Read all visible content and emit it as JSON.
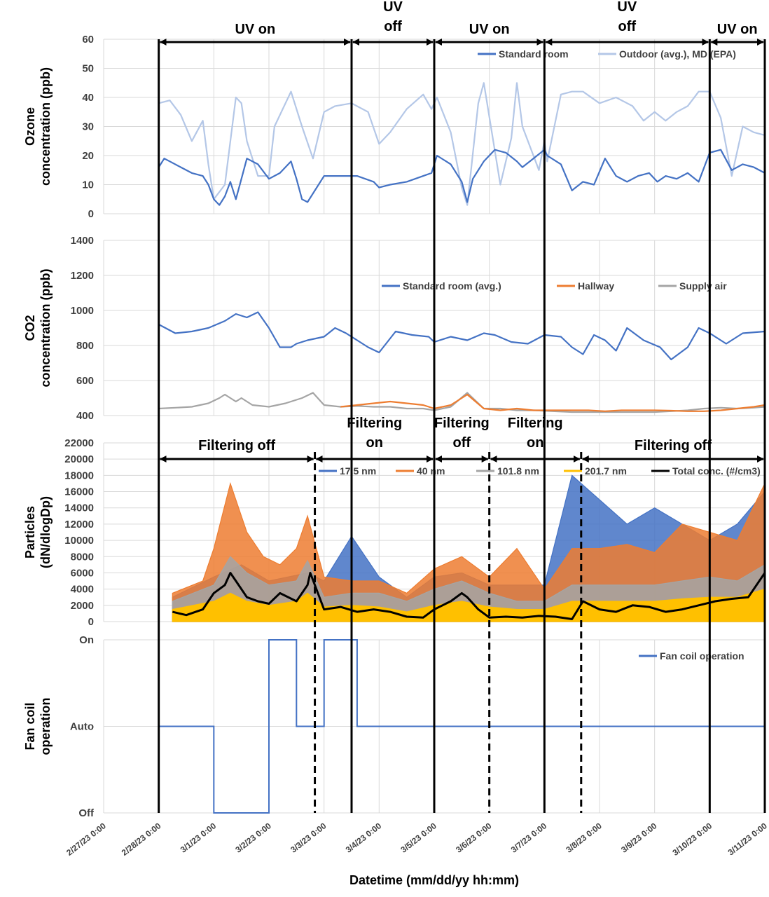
{
  "figure": {
    "xlabel": "Datetime (mm/dd/yy hh:mm)",
    "xticks": [
      "2/27/23 0:00",
      "2/28/23 0:00",
      "3/1/23 0:00",
      "3/2/23 0:00",
      "3/3/23 0:00",
      "3/4/23 0:00",
      "3/5/23 0:00",
      "3/6/23 0:00",
      "3/7/23 0:00",
      "3/8/23 0:00",
      "3/9/23 0:00",
      "3/10/23 0:00",
      "3/11/23 0:00"
    ],
    "uv_periods": [
      {
        "label": [
          "UV on"
        ],
        "start": "2/28/23 0:00",
        "end": "3/3/23 12:00"
      },
      {
        "label": [
          "UV",
          "off"
        ],
        "start": "3/3/23 12:00",
        "end": "3/5/23 0:00"
      },
      {
        "label": [
          "UV on"
        ],
        "start": "3/5/23 0:00",
        "end": "3/7/23 0:00"
      },
      {
        "label": [
          "UV",
          "off"
        ],
        "start": "3/7/23 0:00",
        "end": "3/10/23 0:00"
      },
      {
        "label": [
          "UV on"
        ],
        "start": "3/10/23 0:00",
        "end": "3/11/23 0:00"
      }
    ],
    "filter_periods": [
      {
        "label": [
          "Filtering off"
        ],
        "start": "2/28/23 0:00",
        "end": "3/2/23 20:00"
      },
      {
        "label": [
          "Filtering",
          "on"
        ],
        "start": "3/2/23 20:00",
        "end": "3/5/23 0:00"
      },
      {
        "label": [
          "Filtering",
          "off"
        ],
        "start": "3/5/23 0:00",
        "end": "3/6/23 0:00"
      },
      {
        "label": [
          "Filtering",
          "on"
        ],
        "start": "3/6/23 0:00",
        "end": "3/7/23 16:00"
      },
      {
        "label": [
          "Filtering off"
        ],
        "start": "3/7/23 16:00",
        "end": "3/11/23 0:00"
      }
    ]
  },
  "chart_data": [
    {
      "type": "line",
      "ylabel": [
        "Ozone",
        "concentration (ppb)"
      ],
      "ylim": [
        0,
        60
      ],
      "yticks": [
        "0",
        "10",
        "20",
        "30",
        "40",
        "50",
        "60"
      ],
      "grid": true,
      "legend_position": "top-right",
      "series": [
        {
          "name": "Standard room",
          "color": "#4472c4",
          "x_days": [
            0,
            0.1,
            0.2,
            0.4,
            0.6,
            0.8,
            0.9,
            1.0,
            1.1,
            1.2,
            1.3,
            1.4,
            1.5,
            1.6,
            1.8,
            2.0,
            2.2,
            2.4,
            2.5,
            2.6,
            2.7,
            3.0,
            3.3,
            3.6,
            3.9,
            4.0,
            4.2,
            4.5,
            4.8,
            4.95,
            5.05,
            5.3,
            5.5,
            5.6,
            5.7,
            5.9,
            6.1,
            6.3,
            6.5,
            6.6,
            6.8,
            7.0,
            7.05,
            7.3,
            7.5,
            7.7,
            7.9,
            8.1,
            8.3,
            8.5,
            8.7,
            8.9,
            9.05,
            9.2,
            9.4,
            9.6,
            9.8,
            10.0,
            10.2,
            10.4,
            10.6,
            10.8,
            11.0
          ],
          "values": [
            16,
            19,
            18,
            16,
            14,
            13,
            10,
            5,
            3,
            6,
            11,
            5,
            12,
            19,
            17,
            12,
            14,
            18,
            12,
            5,
            4,
            13,
            13,
            13,
            11,
            9,
            10,
            11,
            13,
            14,
            20,
            17,
            11,
            4,
            12,
            18,
            22,
            21,
            18,
            16,
            19,
            22,
            20,
            17,
            8,
            11,
            10,
            19,
            13,
            11,
            13,
            14,
            11,
            13,
            12,
            14,
            11,
            21,
            22,
            15,
            17,
            16,
            14
          ]
        },
        {
          "name": "Outdoor (avg.), MD (EPA)",
          "color": "#b4c7e7",
          "x_days": [
            0,
            0.2,
            0.4,
            0.6,
            0.8,
            0.9,
            1.0,
            1.2,
            1.4,
            1.5,
            1.6,
            1.8,
            2.0,
            2.1,
            2.4,
            2.6,
            2.8,
            3.0,
            3.2,
            3.5,
            3.8,
            4.0,
            4.2,
            4.5,
            4.8,
            4.95,
            5.05,
            5.3,
            5.5,
            5.6,
            5.8,
            5.9,
            6.2,
            6.4,
            6.5,
            6.6,
            6.9,
            7.0,
            7.05,
            7.3,
            7.5,
            7.7,
            8.0,
            8.3,
            8.6,
            8.8,
            9.0,
            9.2,
            9.4,
            9.6,
            9.8,
            10.0,
            10.2,
            10.4,
            10.6,
            10.8,
            11.0
          ],
          "values": [
            38,
            39,
            34,
            25,
            32,
            17,
            5,
            10,
            40,
            38,
            25,
            13,
            13,
            30,
            42,
            30,
            19,
            35,
            37,
            38,
            35,
            24,
            28,
            36,
            41,
            36,
            40,
            28,
            9,
            3,
            38,
            45,
            10,
            26,
            45,
            30,
            15,
            25,
            18,
            41,
            42,
            42,
            38,
            40,
            37,
            32,
            35,
            32,
            35,
            37,
            42,
            42,
            33,
            13,
            30,
            28,
            27
          ]
        }
      ]
    },
    {
      "type": "line",
      "ylabel": [
        "CO2",
        "concentration (ppb)"
      ],
      "ylim": [
        400,
        1400
      ],
      "yticks": [
        "400",
        "600",
        "800",
        "1000",
        "1200",
        "1400"
      ],
      "grid": true,
      "legend_position": "middle",
      "series": [
        {
          "name": "Standard room (avg.)",
          "color": "#4472c4",
          "x_days": [
            0,
            0.3,
            0.6,
            0.9,
            1.2,
            1.4,
            1.6,
            1.8,
            2.0,
            2.2,
            2.4,
            2.5,
            2.7,
            3.0,
            3.2,
            3.4,
            3.6,
            3.8,
            4.0,
            4.3,
            4.6,
            4.9,
            5.0,
            5.3,
            5.6,
            5.9,
            6.1,
            6.4,
            6.7,
            7.0,
            7.3,
            7.5,
            7.7,
            7.9,
            8.1,
            8.3,
            8.5,
            8.8,
            9.1,
            9.3,
            9.6,
            9.8,
            10.0,
            10.3,
            10.6,
            11.0
          ],
          "values": [
            920,
            870,
            880,
            900,
            940,
            980,
            960,
            990,
            900,
            790,
            790,
            810,
            830,
            850,
            900,
            870,
            830,
            790,
            760,
            880,
            860,
            850,
            820,
            850,
            830,
            870,
            860,
            820,
            810,
            860,
            850,
            790,
            750,
            860,
            830,
            770,
            900,
            830,
            790,
            720,
            790,
            900,
            870,
            810,
            870,
            880
          ]
        },
        {
          "name": "Hallway",
          "color": "#ed7d31",
          "x_days": [
            3.3,
            3.6,
            3.9,
            4.2,
            4.5,
            4.8,
            5.0,
            5.3,
            5.6,
            5.9,
            6.2,
            6.5,
            6.8,
            7.5,
            7.8,
            8.1,
            8.4,
            8.7,
            9.0,
            9.3,
            9.6,
            9.9,
            10.2,
            10.5,
            10.8,
            11.0
          ],
          "values": [
            450,
            460,
            470,
            480,
            470,
            460,
            440,
            460,
            520,
            440,
            430,
            440,
            430,
            430,
            430,
            425,
            430,
            430,
            430,
            428,
            425,
            425,
            430,
            440,
            450,
            460
          ]
        },
        {
          "name": "Supply air",
          "color": "#a5a5a5",
          "x_days": [
            0,
            0.3,
            0.6,
            0.9,
            1.1,
            1.2,
            1.4,
            1.5,
            1.7,
            2.0,
            2.3,
            2.6,
            2.8,
            3.0,
            3.3,
            3.6,
            3.9,
            4.2,
            4.5,
            4.8,
            5.0,
            5.3,
            5.6,
            5.9,
            6.2,
            6.5,
            6.8,
            7.5,
            7.8,
            8.1,
            8.4,
            8.7,
            9.0,
            9.3,
            9.6,
            9.9,
            10.2,
            10.5,
            10.8,
            11.0
          ],
          "values": [
            440,
            445,
            450,
            470,
            500,
            520,
            480,
            500,
            460,
            450,
            470,
            500,
            530,
            460,
            450,
            455,
            450,
            450,
            440,
            440,
            430,
            450,
            530,
            440,
            440,
            430,
            430,
            420,
            420,
            420,
            420,
            420,
            420,
            425,
            430,
            440,
            445,
            440,
            445,
            450
          ]
        }
      ]
    },
    {
      "type": "area",
      "ylabel": [
        "Particles",
        "(dN/dlogDp)"
      ],
      "ylim": [
        0,
        22000
      ],
      "yticks": [
        "0",
        "2000",
        "4000",
        "6000",
        "8000",
        "10000",
        "12000",
        "14000",
        "16000",
        "18000",
        "20000",
        "22000"
      ],
      "grid": true,
      "legend_position": "top",
      "series": [
        {
          "name": "17.5 nm",
          "color": "#4472c4",
          "x_days": [
            0.25,
            1.0,
            1.5,
            2.0,
            2.7,
            3.0,
            3.5,
            4.0,
            4.5,
            5.0,
            5.5,
            6.0,
            6.5,
            7.0,
            7.5,
            8.0,
            8.5,
            9.0,
            9.5,
            10.0,
            10.5,
            11.0
          ],
          "values": [
            3000,
            5500,
            7000,
            5000,
            6000,
            5000,
            10500,
            5500,
            3000,
            5500,
            6000,
            4500,
            4500,
            4500,
            18000,
            15000,
            12000,
            14000,
            12000,
            10000,
            12000,
            16000
          ]
        },
        {
          "name": "40 nm",
          "color": "#ed7d31",
          "x_days": [
            0.25,
            0.8,
            1.0,
            1.3,
            1.6,
            1.9,
            2.2,
            2.5,
            2.7,
            3.0,
            3.5,
            4.0,
            4.5,
            5.0,
            5.5,
            6.0,
            6.5,
            7.0,
            7.5,
            8.0,
            8.5,
            9.0,
            9.5,
            10.0,
            10.5,
            11.0
          ],
          "values": [
            3500,
            5000,
            9000,
            17000,
            11000,
            8000,
            7000,
            9000,
            13000,
            5500,
            5000,
            5000,
            3500,
            6500,
            8000,
            5500,
            9000,
            4000,
            9000,
            9000,
            9500,
            8500,
            12000,
            11000,
            10000,
            17000
          ]
        },
        {
          "name": "101.8 nm",
          "color": "#a5a5a5",
          "x_days": [
            0.25,
            1.0,
            1.3,
            1.6,
            2.0,
            2.5,
            2.7,
            3.0,
            3.5,
            4.0,
            4.5,
            5.0,
            5.5,
            6.0,
            6.5,
            7.0,
            7.5,
            8.0,
            8.5,
            9.0,
            9.5,
            10.0,
            10.5,
            11.0
          ],
          "values": [
            2500,
            4500,
            8000,
            6000,
            4500,
            5000,
            7500,
            3000,
            3500,
            3500,
            2500,
            4000,
            5000,
            3500,
            2500,
            2500,
            4500,
            4500,
            4500,
            4500,
            5000,
            5500,
            5000,
            7000
          ]
        },
        {
          "name": "201.7 nm",
          "color": "#ffc000",
          "x_days": [
            0.25,
            1.0,
            1.3,
            1.6,
            2.0,
            2.5,
            2.7,
            3.0,
            3.5,
            4.0,
            4.5,
            5.0,
            5.5,
            6.0,
            6.5,
            7.0,
            7.5,
            8.0,
            8.5,
            9.0,
            9.5,
            10.0,
            10.5,
            11.0
          ],
          "values": [
            1500,
            2500,
            3500,
            2500,
            2000,
            2500,
            3500,
            1800,
            2000,
            1800,
            1200,
            2000,
            2500,
            1800,
            1500,
            1500,
            2500,
            2500,
            2500,
            2500,
            2800,
            3000,
            3000,
            4000
          ]
        },
        {
          "name": "Total conc. (#/cm3)",
          "color": "#000000",
          "x_days": [
            0.25,
            0.5,
            0.8,
            1.0,
            1.2,
            1.3,
            1.4,
            1.6,
            1.8,
            2.0,
            2.2,
            2.5,
            2.7,
            2.75,
            3.0,
            3.3,
            3.6,
            3.9,
            4.2,
            4.5,
            4.8,
            5.0,
            5.3,
            5.5,
            5.6,
            5.8,
            6.0,
            6.3,
            6.6,
            6.9,
            7.2,
            7.5,
            7.7,
            8.0,
            8.3,
            8.6,
            8.9,
            9.2,
            9.5,
            9.8,
            10.1,
            10.4,
            10.7,
            11.0
          ],
          "values": [
            1200,
            800,
            1500,
            3500,
            4500,
            6000,
            5000,
            3000,
            2500,
            2200,
            3500,
            2500,
            4500,
            6000,
            1500,
            1800,
            1200,
            1500,
            1200,
            600,
            500,
            1500,
            2500,
            3500,
            3000,
            1500,
            500,
            600,
            500,
            700,
            600,
            300,
            2500,
            1500,
            1200,
            2000,
            1800,
            1200,
            1500,
            2000,
            2500,
            2800,
            3000,
            6000
          ]
        }
      ]
    },
    {
      "type": "line",
      "ylabel": [
        "Fan coil",
        "operation"
      ],
      "ylevels": [
        "Off",
        "Auto",
        "On"
      ],
      "grid": true,
      "legend_position": "top-right",
      "series": [
        {
          "name": "Fan coil operation",
          "color": "#4472c4",
          "x_days": [
            0,
            1,
            1,
            2,
            2,
            2.5,
            2.5,
            3.0,
            3.0,
            3.6,
            3.6,
            11.0
          ],
          "levels": [
            "Auto",
            "Auto",
            "Off",
            "Off",
            "On",
            "On",
            "Auto",
            "Auto",
            "On",
            "On",
            "Auto",
            "Auto"
          ]
        }
      ]
    }
  ]
}
